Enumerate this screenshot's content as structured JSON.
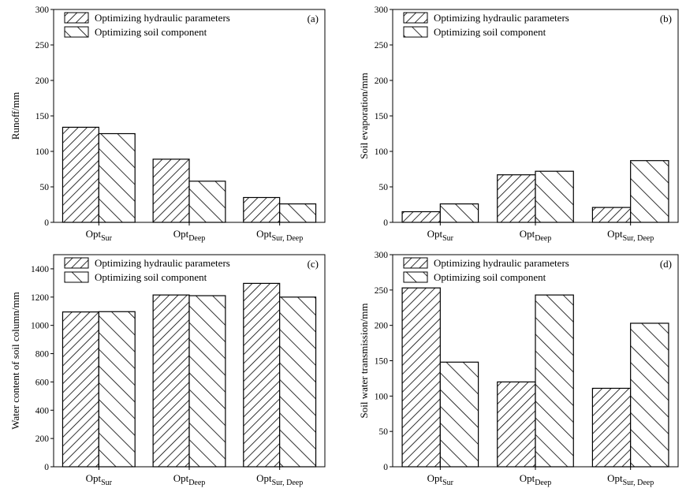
{
  "legend": {
    "series_a": "Optimizing hydraulic parameters",
    "series_b": "Optimizing soil component"
  },
  "category_labels": [
    {
      "base": "Opt",
      "sub": "Sur"
    },
    {
      "base": "Opt",
      "sub": "Deep"
    },
    {
      "base": "Opt",
      "sub": "Sur, Deep"
    }
  ],
  "chart_data": [
    {
      "type": "bar",
      "panel_label": "(a)",
      "ylabel": "Runoff/mm",
      "ylim": [
        0,
        300
      ],
      "yticks": [
        0,
        50,
        100,
        150,
        200,
        250,
        300
      ],
      "categories": [
        "OptSur",
        "OptDeep",
        "OptSur, Deep"
      ],
      "series": [
        {
          "name": "Optimizing hydraulic parameters",
          "values": [
            134,
            89,
            35
          ]
        },
        {
          "name": "Optimizing soil component",
          "values": [
            125,
            58,
            26
          ]
        }
      ],
      "legend_position": "top-left"
    },
    {
      "type": "bar",
      "panel_label": "(b)",
      "ylabel": "Soil evaporation/mm",
      "ylim": [
        0,
        300
      ],
      "yticks": [
        0,
        50,
        100,
        150,
        200,
        250,
        300
      ],
      "categories": [
        "OptSur",
        "OptDeep",
        "OptSur, Deep"
      ],
      "series": [
        {
          "name": "Optimizing hydraulic parameters",
          "values": [
            15,
            67,
            21
          ]
        },
        {
          "name": "Optimizing soil component",
          "values": [
            26,
            72,
            87
          ]
        }
      ],
      "legend_position": "top-left"
    },
    {
      "type": "bar",
      "panel_label": "(c)",
      "ylabel": "Water content of soil column/mm",
      "ylim": [
        0,
        1500
      ],
      "yticks": [
        0,
        200,
        400,
        600,
        800,
        1000,
        1200,
        1400
      ],
      "categories": [
        "OptSur",
        "OptDeep",
        "OptSur, Deep"
      ],
      "series": [
        {
          "name": "Optimizing hydraulic parameters",
          "values": [
            1095,
            1215,
            1297
          ]
        },
        {
          "name": "Optimizing soil component",
          "values": [
            1097,
            1210,
            1200
          ]
        }
      ],
      "legend_position": "top-left"
    },
    {
      "type": "bar",
      "panel_label": "(d)",
      "ylabel": "Soil water transmission/mm",
      "ylim": [
        0,
        300
      ],
      "yticks": [
        0,
        50,
        100,
        150,
        200,
        250,
        300
      ],
      "categories": [
        "OptSur",
        "OptDeep",
        "OptSur, Deep"
      ],
      "series": [
        {
          "name": "Optimizing hydraulic parameters",
          "values": [
            253,
            120,
            111
          ]
        },
        {
          "name": "Optimizing soil component",
          "values": [
            148,
            243,
            203
          ]
        }
      ],
      "legend_position": "top-left"
    }
  ]
}
